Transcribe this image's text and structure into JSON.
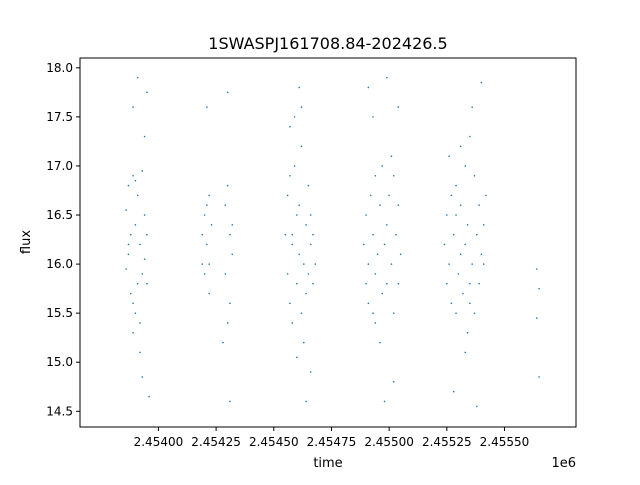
{
  "chart_data": {
    "type": "scatter",
    "title": "1SWASPJ161708.84-202426.5",
    "xlabel": "time",
    "ylabel": "flux",
    "x_offset_label": "1e6",
    "xlim": [
      2.45366,
      2.45581
    ],
    "ylim": [
      14.34,
      18.1
    ],
    "x_ticks": [
      2.454,
      2.45425,
      2.4545,
      2.45475,
      2.455,
      2.45525,
      2.4555
    ],
    "x_tick_labels": [
      "2.45400",
      "2.45425",
      "2.45450",
      "2.45475",
      "2.45500",
      "2.45525",
      "2.45550"
    ],
    "y_ticks": [
      14.5,
      15.0,
      15.5,
      16.0,
      16.5,
      17.0,
      17.5,
      18.0
    ],
    "y_tick_labels": [
      "14.5",
      "15.0",
      "15.5",
      "16.0",
      "16.5",
      "17.0",
      "17.5",
      "18.0"
    ],
    "grid": false,
    "marker_color": "#1f77b4",
    "series": [
      {
        "x": [
          2.45386,
          2.45386,
          2.45387,
          2.45387,
          2.45388,
          2.45388,
          2.45389,
          2.45389,
          2.4539,
          2.4539,
          2.45391,
          2.45391,
          2.45392,
          2.45392,
          2.45393,
          2.45393,
          2.45394,
          2.45394,
          2.45395,
          2.45395,
          2.45389,
          2.45391,
          2.45392,
          2.45394,
          2.45387,
          2.45393,
          2.45395,
          2.45389,
          2.45396,
          2.4539,
          2.45419,
          2.4542,
          2.4542,
          2.45421,
          2.45421,
          2.45422,
          2.45422,
          2.45423,
          2.45429,
          2.45429,
          2.4543,
          2.4543,
          2.45431,
          2.45431,
          2.45432,
          2.45432,
          2.45421,
          2.4543,
          2.45428,
          2.45419,
          2.45431,
          2.45422,
          2.45455,
          2.45456,
          2.45456,
          2.45457,
          2.45457,
          2.45458,
          2.45458,
          2.45459,
          2.4546,
          2.4546,
          2.45461,
          2.45461,
          2.45462,
          2.45462,
          2.45463,
          2.45464,
          2.45464,
          2.45465,
          2.45465,
          2.45466,
          2.45466,
          2.45467,
          2.45467,
          2.45468,
          2.45457,
          2.4546,
          2.45462,
          2.45464,
          2.45466,
          2.45459,
          2.45463,
          2.45458,
          2.45461,
          2.45489,
          2.4549,
          2.4549,
          2.45491,
          2.45491,
          2.45492,
          2.45493,
          2.45493,
          2.45494,
          2.45494,
          2.45495,
          2.45496,
          2.45497,
          2.45497,
          2.45498,
          2.45499,
          2.45499,
          2.455,
          2.45501,
          2.45502,
          2.45502,
          2.45503,
          2.45504,
          2.45504,
          2.45505,
          2.45493,
          2.45496,
          2.45499,
          2.45502,
          2.45491,
          2.45498,
          2.45504,
          2.45494,
          2.45501,
          2.45524,
          2.45525,
          2.45525,
          2.45526,
          2.45527,
          2.45527,
          2.45528,
          2.45529,
          2.45529,
          2.4553,
          2.45531,
          2.45531,
          2.45532,
          2.45533,
          2.45533,
          2.45534,
          2.45535,
          2.45535,
          2.45536,
          2.45537,
          2.45537,
          2.45538,
          2.45539,
          2.45539,
          2.4554,
          2.45541,
          2.45541,
          2.45542,
          2.45528,
          2.45531,
          2.45533,
          2.45536,
          2.45538,
          2.45526,
          2.45534,
          2.4554,
          2.45529,
          2.45535,
          2.45564,
          2.45564,
          2.45565,
          2.45565
        ],
        "y": [
          16.55,
          15.95,
          16.8,
          16.1,
          16.3,
          15.7,
          16.9,
          15.6,
          16.4,
          15.5,
          16.7,
          15.8,
          16.2,
          15.4,
          16.95,
          15.9,
          16.5,
          16.05,
          16.3,
          15.8,
          17.6,
          17.9,
          15.1,
          17.3,
          16.2,
          14.85,
          17.75,
          15.3,
          14.65,
          16.85,
          16.3,
          16.5,
          15.9,
          16.2,
          16.6,
          16.0,
          15.7,
          16.4,
          15.9,
          16.6,
          16.8,
          15.4,
          16.3,
          15.6,
          16.1,
          16.4,
          17.6,
          17.75,
          15.2,
          16.0,
          14.6,
          16.7,
          16.3,
          15.9,
          16.7,
          15.6,
          16.9,
          16.2,
          15.4,
          17.0,
          16.5,
          15.8,
          16.1,
          16.6,
          15.5,
          17.2,
          16.0,
          16.4,
          15.7,
          16.8,
          15.9,
          16.2,
          16.5,
          15.8,
          16.3,
          16.0,
          17.4,
          15.05,
          17.6,
          14.6,
          14.9,
          17.5,
          15.2,
          16.3,
          17.8,
          16.2,
          15.8,
          16.5,
          16.0,
          15.6,
          16.7,
          16.3,
          15.5,
          16.9,
          15.9,
          16.1,
          16.6,
          15.7,
          17.0,
          16.2,
          16.4,
          15.8,
          16.7,
          16.0,
          15.5,
          16.9,
          16.3,
          15.8,
          16.6,
          16.1,
          17.5,
          15.2,
          17.9,
          14.8,
          17.8,
          14.6,
          17.6,
          15.4,
          17.1,
          16.2,
          15.8,
          16.5,
          16.0,
          15.6,
          16.7,
          16.3,
          15.5,
          16.8,
          15.9,
          16.1,
          16.6,
          15.7,
          17.0,
          16.2,
          16.4,
          15.8,
          17.3,
          16.0,
          15.5,
          16.9,
          16.3,
          15.8,
          16.6,
          16.1,
          16.4,
          16.0,
          16.7,
          14.7,
          17.2,
          15.1,
          17.6,
          14.55,
          17.1,
          15.3,
          17.85,
          16.5,
          15.6,
          15.95,
          15.45,
          14.85,
          15.75
        ]
      }
    ]
  }
}
